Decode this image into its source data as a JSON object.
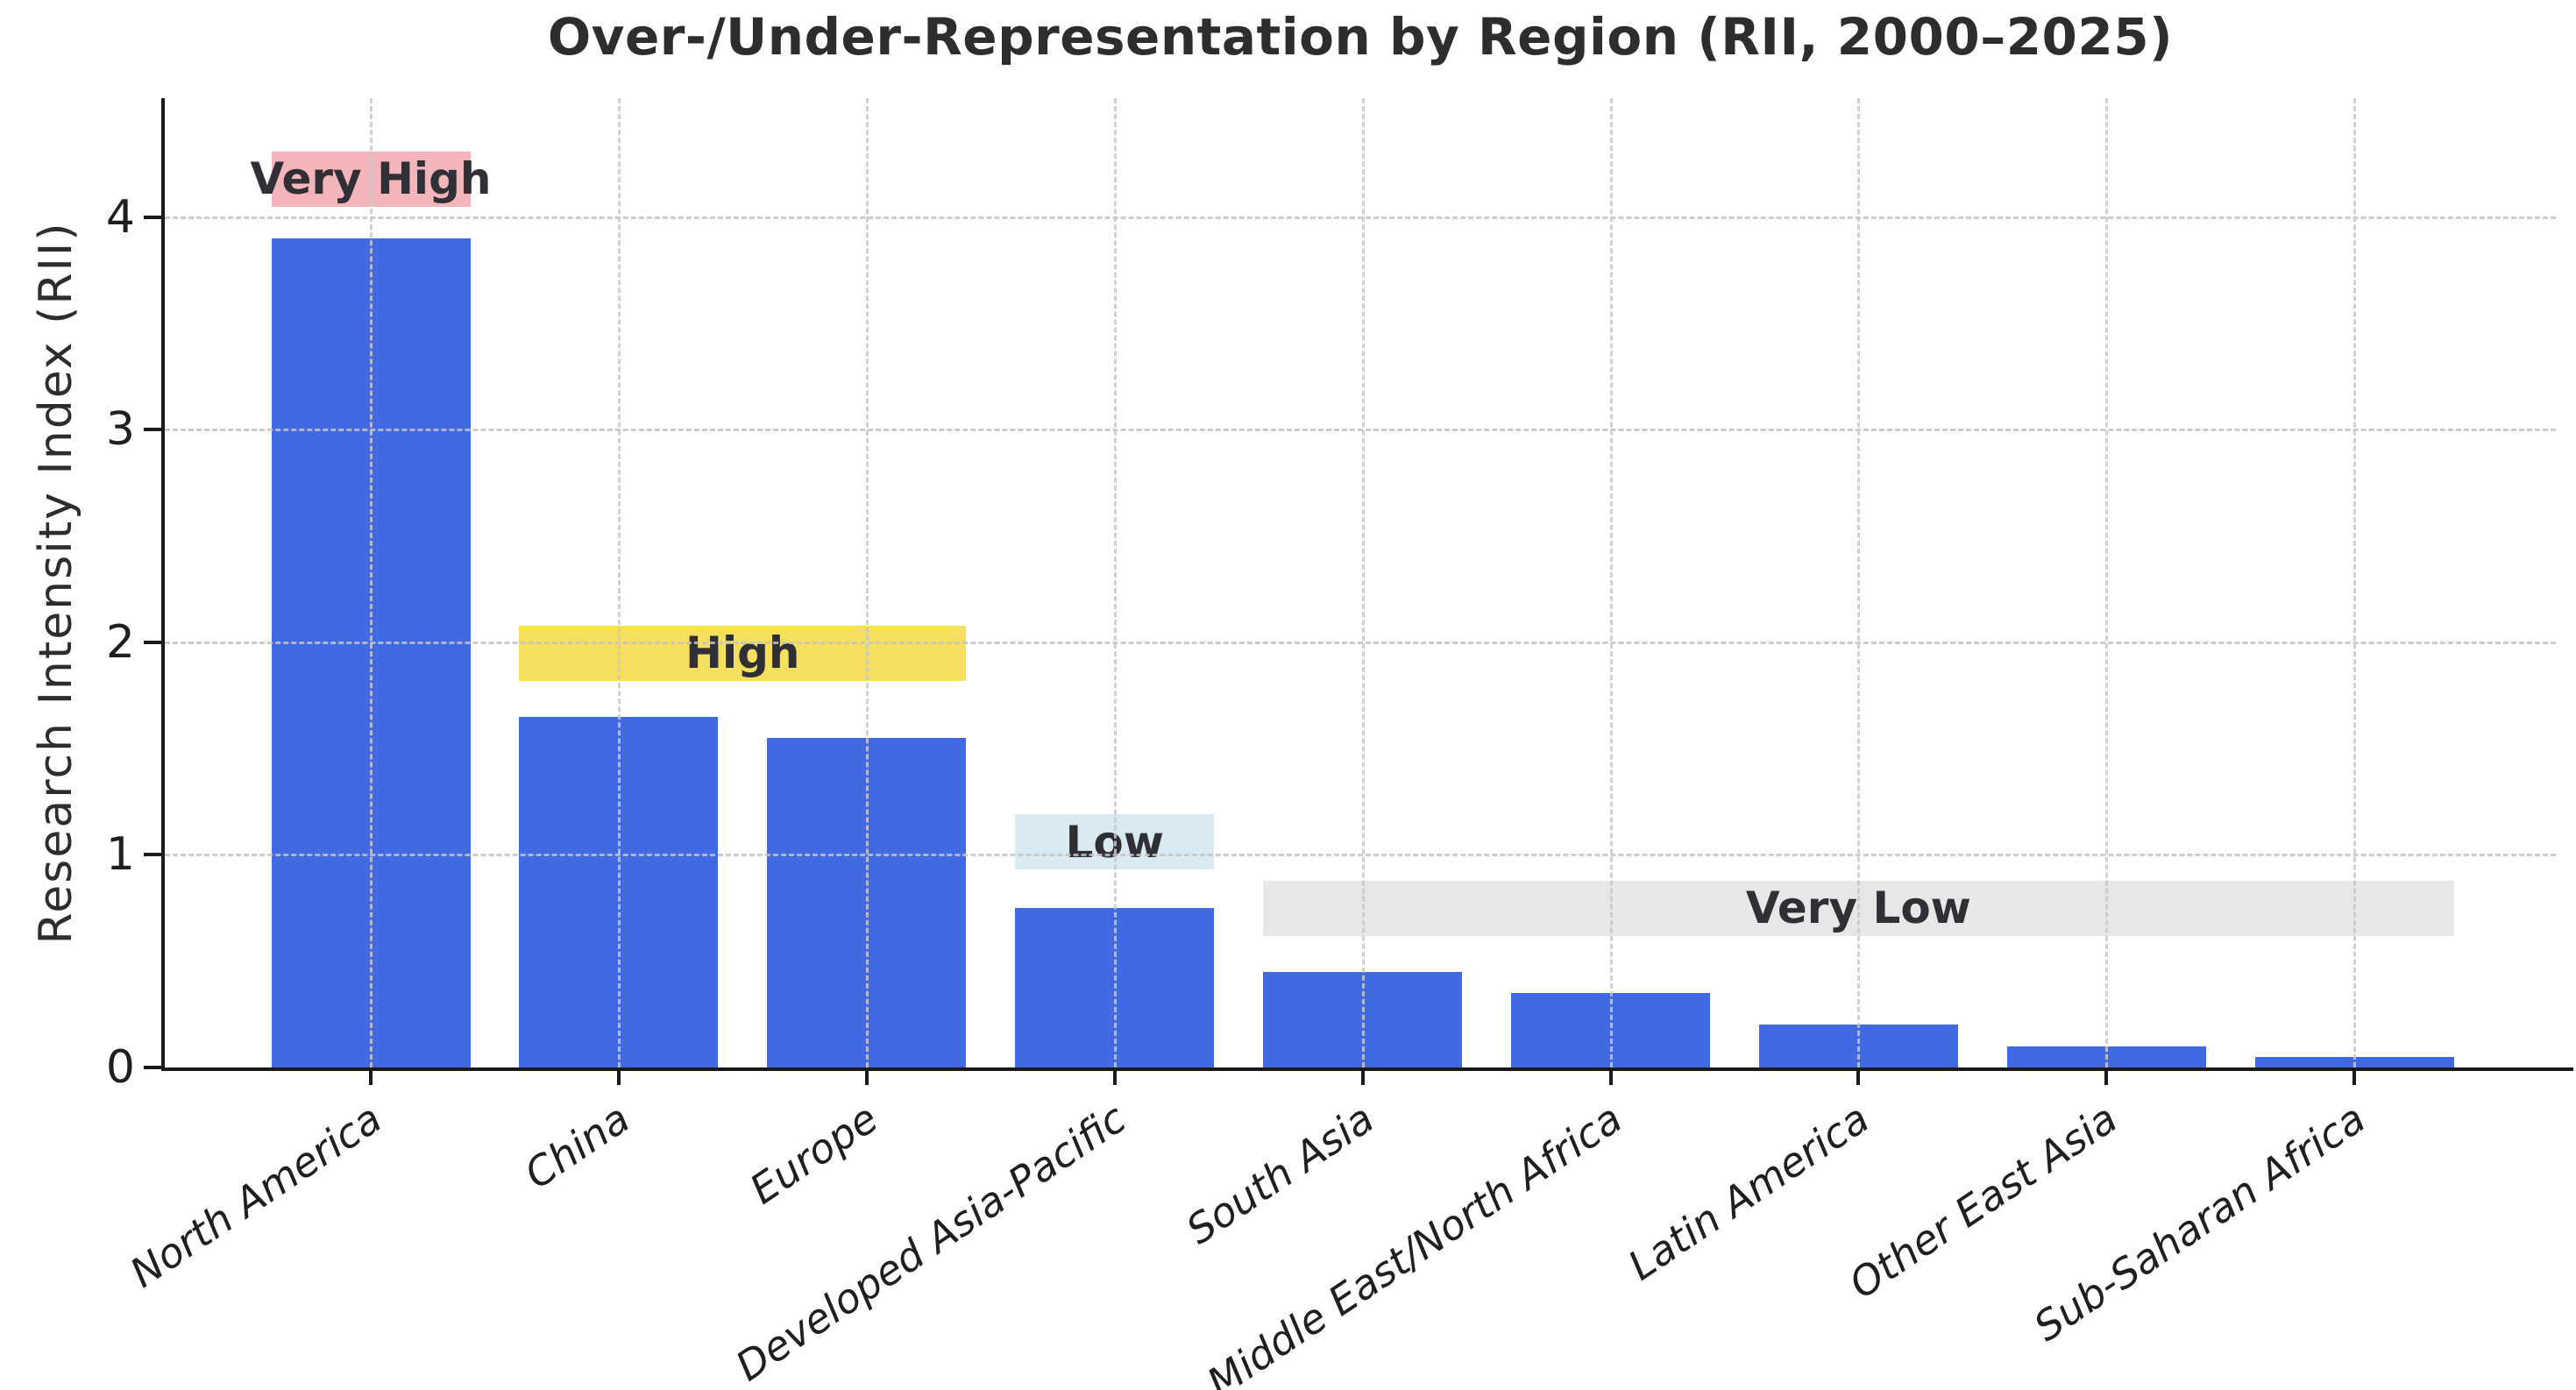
{
  "title": "Over-/Under-Representation by Region (RII, 2000–2025)",
  "chart_data": {
    "type": "bar",
    "title": "Over-/Under-Representation by Region (RII, 2000–2025)",
    "ylabel": "Research Intensity Index (RII)",
    "xlabel": "",
    "categories": [
      "North America",
      "China",
      "Europe",
      "Developed Asia-Pacific",
      "South Asia",
      "Middle East/North Africa",
      "Latin America",
      "Other East Asia",
      "Sub-Saharan Africa"
    ],
    "values": [
      3.9,
      1.65,
      1.55,
      0.75,
      0.45,
      0.35,
      0.2,
      0.1,
      0.05
    ],
    "yticks": [
      0,
      1,
      2,
      3,
      4
    ],
    "ylim": [
      0,
      4.56
    ],
    "grid": true,
    "legend_position": "none",
    "bar_color": "#4169e1",
    "text_color": "#2d2d2d",
    "grid_color": "#c4c4c4",
    "annotations": [
      {
        "label": "Very High",
        "from_bar": 0,
        "to_bar": 0,
        "y_from": 4.05,
        "y_to": 4.31,
        "fill": "#f3b4ba"
      },
      {
        "label": "High",
        "from_bar": 1,
        "to_bar": 2,
        "y_from": 1.82,
        "y_to": 2.08,
        "fill": "#f6df5e"
      },
      {
        "label": "Low",
        "from_bar": 3,
        "to_bar": 3,
        "y_from": 0.93,
        "y_to": 1.19,
        "fill": "#d9eaf3"
      },
      {
        "label": "Very Low",
        "from_bar": 4,
        "to_bar": 8,
        "y_from": 0.62,
        "y_to": 0.88,
        "fill": "#e7e7e7"
      }
    ]
  }
}
